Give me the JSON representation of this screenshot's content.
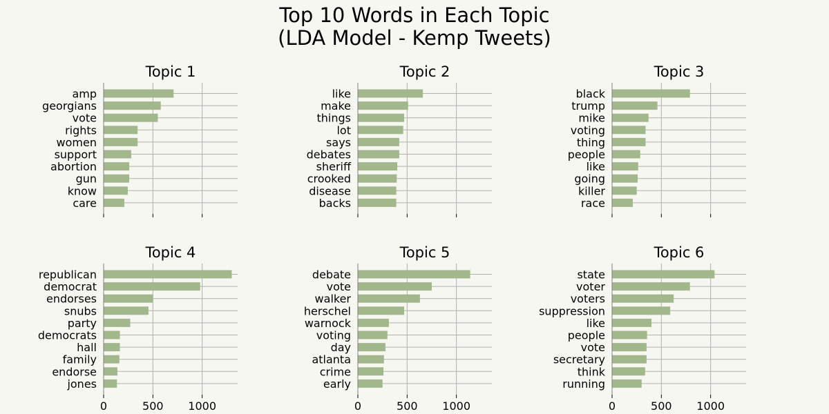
{
  "figure": {
    "title_line1": "Top 10 Words in Each Topic",
    "title_line2": "(LDA Model - Kemp Tweets)",
    "background": "#f7f7f2",
    "bar_color": "#a2b78b",
    "grid_color": "#b0b0b0"
  },
  "chart_data": [
    {
      "type": "bar",
      "orientation": "horizontal",
      "title": "Topic 1",
      "categories": [
        "amp",
        "georgians",
        "vote",
        "rights",
        "women",
        "support",
        "abortion",
        "gun",
        "know",
        "care"
      ],
      "values": [
        710,
        580,
        550,
        345,
        345,
        280,
        260,
        260,
        245,
        210
      ],
      "xlim": [
        0,
        1360
      ],
      "xticks": [
        0,
        500,
        1000
      ],
      "xticklabels_visible": false,
      "grid": true
    },
    {
      "type": "bar",
      "orientation": "horizontal",
      "title": "Topic 2",
      "categories": [
        "like",
        "make",
        "things",
        "lot",
        "says",
        "debates",
        "sheriff",
        "crooked",
        "disease",
        "backs"
      ],
      "values": [
        660,
        510,
        470,
        460,
        420,
        420,
        400,
        395,
        390,
        390
      ],
      "xlim": [
        0,
        1360
      ],
      "xticks": [
        0,
        500,
        1000
      ],
      "xticklabels_visible": false,
      "grid": true
    },
    {
      "type": "bar",
      "orientation": "horizontal",
      "title": "Topic 3",
      "categories": [
        "black",
        "trump",
        "mike",
        "voting",
        "thing",
        "people",
        "like",
        "going",
        "killer",
        "race"
      ],
      "values": [
        790,
        460,
        370,
        340,
        340,
        285,
        265,
        260,
        250,
        210
      ],
      "xlim": [
        0,
        1360
      ],
      "xticks": [
        0,
        500,
        1000
      ],
      "xticklabels_visible": false,
      "grid": true
    },
    {
      "type": "bar",
      "orientation": "horizontal",
      "title": "Topic 4",
      "categories": [
        "republican",
        "democrat",
        "endorses",
        "snubs",
        "party",
        "democrats",
        "hall",
        "family",
        "endorse",
        "jones"
      ],
      "values": [
        1300,
        980,
        500,
        455,
        270,
        165,
        165,
        160,
        140,
        135
      ],
      "xlim": [
        0,
        1360
      ],
      "xticks": [
        0,
        500,
        1000
      ],
      "xticklabels_visible": true,
      "grid": true
    },
    {
      "type": "bar",
      "orientation": "horizontal",
      "title": "Topic 5",
      "categories": [
        "debate",
        "vote",
        "walker",
        "herschel",
        "warnock",
        "voting",
        "day",
        "atlanta",
        "crime",
        "early"
      ],
      "values": [
        1140,
        750,
        630,
        470,
        315,
        300,
        280,
        265,
        260,
        250
      ],
      "xlim": [
        0,
        1360
      ],
      "xticks": [
        0,
        500,
        1000
      ],
      "xticklabels_visible": true,
      "grid": true
    },
    {
      "type": "bar",
      "orientation": "horizontal",
      "title": "Topic 6",
      "categories": [
        "state",
        "voter",
        "voters",
        "suppression",
        "like",
        "people",
        "vote",
        "secretary",
        "think",
        "running"
      ],
      "values": [
        1040,
        790,
        625,
        590,
        400,
        355,
        350,
        350,
        335,
        300
      ],
      "xlim": [
        0,
        1360
      ],
      "xticks": [
        0,
        500,
        1000
      ],
      "xticklabels_visible": true,
      "grid": true
    }
  ]
}
